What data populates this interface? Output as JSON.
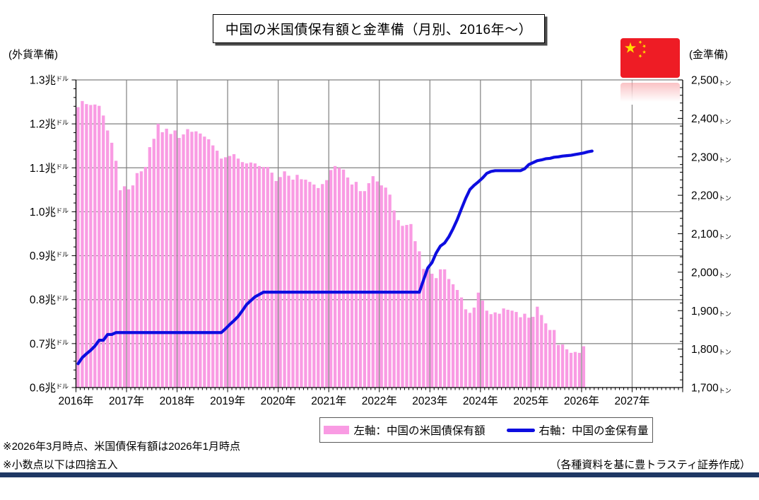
{
  "header": {
    "title": "中国の米国債保有額と金準備（月別、2016年～）"
  },
  "legend": {
    "items": [
      {
        "label": "左軸：中国の米国債保有額",
        "swatch": "pink-bar"
      },
      {
        "label": "右軸：中国の金保有量",
        "swatch": "blue-line"
      }
    ]
  },
  "notes": {
    "asof": "※2026年3月時点、米国債保有額は2026年1月時点",
    "rounding": "※小数点以下は四捨五入"
  },
  "source": "（各種資料を基に豊トラスティ証券作成）",
  "flag": {
    "name": "china-flag"
  },
  "colors": {
    "bar_pink": "#F99BE3",
    "line_blue": "#0D0DE0",
    "gridline": "#808080",
    "axis": "#000000",
    "navy_bar": "#1F3864",
    "flag_red": "#EE1C25",
    "flag_yellow": "#FFDE00"
  },
  "chart_data": {
    "type": "bar+line",
    "title": "中国の米国債保有額と金準備（月別、2016年～）",
    "x_start": "2016-01",
    "x_frequency": "monthly",
    "x_domain_years": [
      2016,
      2028
    ],
    "x_tick_labels": [
      "2016年",
      "2017年",
      "2018年",
      "2019年",
      "2020年",
      "2021年",
      "2022年",
      "2023年",
      "2024年",
      "2025年",
      "2026年",
      "2027年"
    ],
    "grid": true,
    "legend_position": "bottom",
    "left_axis": {
      "caption": "(外貨準備)",
      "unit": "兆ドル",
      "lim": [
        0.6,
        1.3
      ],
      "tick_step": 0.1,
      "ticks": [
        "1.3兆",
        "1.2兆",
        "1.1兆",
        "1.0兆",
        "0.9兆",
        "0.8兆",
        "0.7兆",
        "0.6兆"
      ],
      "tick_unit_small": "ドル"
    },
    "right_axis": {
      "caption": "(金準備)",
      "unit": "トン",
      "lim": [
        1700,
        2500
      ],
      "tick_step": 100,
      "ticks": [
        "2,500",
        "2,400",
        "2,300",
        "2,200",
        "2,100",
        "2,000",
        "1,900",
        "1,800",
        "1,700"
      ],
      "tick_unit_small": "トン"
    },
    "series": [
      {
        "name": "左軸：中国の米国債保有額",
        "type": "bar",
        "axis": "left",
        "unit_stored": "billion_usd",
        "first_month": "2016-01",
        "last_month": "2026-01",
        "values": [
          1238,
          1252,
          1245,
          1243,
          1244,
          1241,
          1219,
          1185,
          1157,
          1116,
          1049,
          1058,
          1051,
          1060,
          1088,
          1092,
          1102,
          1147,
          1166,
          1200,
          1181,
          1189,
          1177,
          1185,
          1168,
          1176,
          1188,
          1182,
          1183,
          1178,
          1171,
          1165,
          1151,
          1139,
          1121,
          1124,
          1127,
          1131,
          1121,
          1113,
          1110,
          1112,
          1110,
          1104,
          1102,
          1102,
          1089,
          1070,
          1079,
          1092,
          1082,
          1073,
          1084,
          1074,
          1073,
          1068,
          1062,
          1054,
          1063,
          1072,
          1095,
          1104,
          1100,
          1096,
          1078,
          1062,
          1068,
          1047,
          1047,
          1065,
          1081,
          1069,
          1060,
          1055,
          1039,
          1003,
          981,
          968,
          970,
          972,
          933,
          910,
          870,
          867,
          859,
          849,
          869,
          869,
          847,
          835,
          822,
          805,
          778,
          770,
          782,
          816,
          798,
          775,
          767,
          771,
          768,
          780,
          777,
          775,
          772,
          760,
          768,
          759,
          761,
          784,
          765,
          746,
          731,
          731,
          697,
          698,
          687,
          679,
          681,
          679,
          694
        ]
      },
      {
        "name": "右軸：中国の金保有量",
        "type": "line",
        "axis": "right",
        "unit_stored": "tonnes",
        "first_month": "2016-01",
        "last_month": "2026-03",
        "values": [
          1762,
          1778,
          1788,
          1797,
          1808,
          1823,
          1823,
          1838,
          1838,
          1843,
          1843,
          1843,
          1843,
          1843,
          1843,
          1843,
          1843,
          1843,
          1843,
          1843,
          1843,
          1843,
          1843,
          1843,
          1843,
          1843,
          1843,
          1843,
          1843,
          1843,
          1843,
          1843,
          1843,
          1843,
          1843,
          1853,
          1864,
          1874,
          1885,
          1900,
          1916,
          1926,
          1936,
          1942,
          1948,
          1948,
          1948,
          1948,
          1948,
          1948,
          1948,
          1948,
          1948,
          1948,
          1948,
          1948,
          1948,
          1948,
          1948,
          1948,
          1948,
          1948,
          1948,
          1948,
          1948,
          1948,
          1948,
          1948,
          1948,
          1948,
          1948,
          1948,
          1948,
          1948,
          1948,
          1948,
          1948,
          1948,
          1948,
          1948,
          1948,
          1948,
          1980,
          2011,
          2025,
          2050,
          2068,
          2076,
          2092,
          2113,
          2137,
          2165,
          2192,
          2215,
          2226,
          2235,
          2245,
          2257,
          2262,
          2264,
          2264,
          2264,
          2264,
          2264,
          2264,
          2264,
          2269,
          2280,
          2285,
          2290,
          2292,
          2295,
          2296,
          2299,
          2300,
          2302,
          2303,
          2304,
          2306,
          2308,
          2310,
          2313,
          2315
        ]
      }
    ]
  }
}
